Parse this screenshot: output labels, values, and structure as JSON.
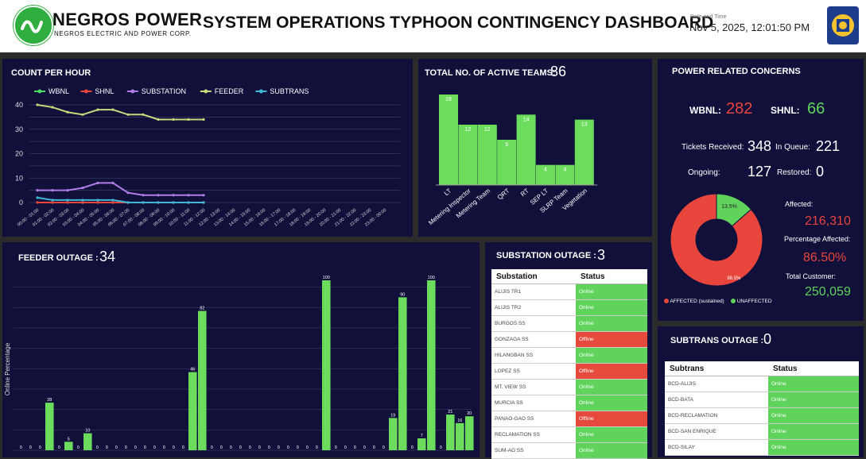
{
  "header": {
    "logo_text": "NEGROS POWER",
    "logo_subtext": "NEGROS ELECTRIC AND POWER CORP.",
    "title": "SYSTEM OPERATIONS TYPHOON CONTINGENCY DASHBOARD",
    "datetime_label": "Date and Time",
    "datetime_value": "Nov 5, 2025, 12:01:50 PM"
  },
  "count_per_hour": {
    "title": "COUNT PER HOUR",
    "legend": [
      "WBNL",
      "SHNL",
      "SUBSTATION",
      "FEEDER",
      "SUBTRANS"
    ],
    "colors": {
      "WBNL": "#4cd964",
      "SHNL": "#e8453c",
      "SUBSTATION": "#b07ce8",
      "FEEDER": "#c9d67a",
      "SUBTRANS": "#3fb8d6"
    }
  },
  "active_teams": {
    "title": "TOTAL NO. OF ACTIVE TEAMS:",
    "total": "86",
    "bar_color": "#6bdc5c"
  },
  "power_concerns": {
    "title": "POWER RELATED CONCERNS",
    "wbnl_label": "WBNL:",
    "wbnl_value": "282",
    "shnl_label": "SHNL:",
    "shnl_value": "66",
    "tickets_label": "Tickets Received:",
    "tickets_value": "348",
    "queue_label": "In Queue:",
    "queue_value": "221",
    "ongoing_label": "Ongoing:",
    "ongoing_value": "127",
    "restored_label": "Restored:",
    "restored_value": "0",
    "affected_label": "Affected:",
    "affected_value": "216,310",
    "pct_label": "Percentage Affected:",
    "pct_value": "86.50%",
    "total_label": "Total Customer:",
    "total_value": "250,059",
    "donut_affected_label": "86.5%",
    "donut_unaffected_label": "13.5%",
    "legend_affected": "AFFECTED (sustained)",
    "legend_unaffected": "UNAFFECTED",
    "affected_fraction": 0.865,
    "colors": {
      "affected": "#e8453c",
      "unaffected": "#5fd35b"
    }
  },
  "feeder_outage": {
    "title": "FEEDER OUTAGE :",
    "count": "34",
    "ylabel": "Online Percentage"
  },
  "substation_outage": {
    "title": "SUBSTATION OUTAGE :",
    "count": "3",
    "col_name": "Substation",
    "col_status": "Status",
    "rows": [
      {
        "name": "ALIJIS TR1",
        "status": "Online"
      },
      {
        "name": "ALIJIS TR2",
        "status": "Online"
      },
      {
        "name": "BURGOS SS",
        "status": "Online"
      },
      {
        "name": "GONZAGA SS",
        "status": "Offline"
      },
      {
        "name": "HILANGBAN SS",
        "status": "Online"
      },
      {
        "name": "LOPEZ SS",
        "status": "Offline"
      },
      {
        "name": "MT. VIEW SS",
        "status": "Online"
      },
      {
        "name": "MURCIA SS",
        "status": "Online"
      },
      {
        "name": "PANAO-GAO SS",
        "status": "Offline"
      },
      {
        "name": "RECLAMATION SS",
        "status": "Online"
      },
      {
        "name": "SUM-AG SS",
        "status": "Online"
      }
    ]
  },
  "subtrans_outage": {
    "title": "SUBTRANS OUTAGE :",
    "count": "0",
    "col_name": "Subtrans",
    "col_status": "Status",
    "rows": [
      {
        "name": "BCD-ALIJIS",
        "status": "Online"
      },
      {
        "name": "BCD-BATA",
        "status": "Online"
      },
      {
        "name": "BCD-RECLAMATION",
        "status": "Online"
      },
      {
        "name": "BCD-SAN ENRIQUE",
        "status": "Online"
      },
      {
        "name": "BCD-SILAY",
        "status": "Online"
      }
    ]
  },
  "chart_data": [
    {
      "type": "line",
      "title": "COUNT PER HOUR",
      "x": [
        "00:00 - 01:00",
        "01:00 - 02:00",
        "02:00 - 03:00",
        "03:00 - 04:00",
        "04:00 - 05:00",
        "05:00 - 06:00",
        "06:00 - 07:00",
        "07:00 - 08:00",
        "08:00 - 09:00",
        "09:00 - 10:00",
        "10:00 - 11:00",
        "11:00 - 12:00",
        "12:00 - 13:00",
        "13:00 - 14:00",
        "14:00 - 15:00",
        "15:00 - 16:00",
        "16:00 - 17:00",
        "17:00 - 18:00",
        "18:00 - 19:00",
        "19:00 - 20:00",
        "20:00 - 21:00",
        "21:00 - 22:00",
        "22:00 - 23:00",
        "23:00 - 00:00"
      ],
      "ylim": [
        0,
        40
      ],
      "yticks": [
        0,
        10,
        20,
        30,
        40
      ],
      "grid": true,
      "legend_position": "top-left",
      "series": [
        {
          "name": "WBNL",
          "values": [
            0,
            0,
            0,
            0,
            0,
            0,
            0,
            0,
            0,
            0,
            0,
            0,
            null,
            null,
            null,
            null,
            null,
            null,
            null,
            null,
            null,
            null,
            null,
            null
          ]
        },
        {
          "name": "SHNL",
          "values": [
            0,
            0,
            0,
            0,
            0,
            0,
            0,
            0,
            0,
            0,
            0,
            0,
            null,
            null,
            null,
            null,
            null,
            null,
            null,
            null,
            null,
            null,
            null,
            null
          ]
        },
        {
          "name": "SUBSTATION",
          "values": [
            5,
            5,
            5,
            6,
            8,
            8,
            4,
            3,
            3,
            3,
            3,
            3,
            null,
            null,
            null,
            null,
            null,
            null,
            null,
            null,
            null,
            null,
            null,
            null
          ]
        },
        {
          "name": "FEEDER",
          "values": [
            40,
            39,
            37,
            36,
            38,
            38,
            36,
            36,
            34,
            34,
            34,
            34,
            null,
            null,
            null,
            null,
            null,
            null,
            null,
            null,
            null,
            null,
            null,
            null
          ]
        },
        {
          "name": "SUBTRANS",
          "values": [
            2,
            1,
            1,
            1,
            1,
            1,
            0,
            0,
            0,
            0,
            0,
            0,
            null,
            null,
            null,
            null,
            null,
            null,
            null,
            null,
            null,
            null,
            null,
            null
          ]
        }
      ]
    },
    {
      "type": "bar",
      "title": "TOTAL NO. OF ACTIVE TEAMS:",
      "categories": [
        "LT",
        "Metering Inspector",
        "Metering Team",
        "QRT",
        "RT",
        "SEP LT",
        "SLRP Team",
        "Vegetation"
      ],
      "values": [
        18,
        12,
        12,
        9,
        14,
        4,
        4,
        13
      ]
    },
    {
      "type": "pie",
      "title": "POWER RELATED CONCERNS",
      "slices": [
        {
          "name": "AFFECTED (sustained)",
          "value": 86.5
        },
        {
          "name": "UNAFFECTED",
          "value": 13.5
        }
      ]
    },
    {
      "type": "bar",
      "title": "FEEDER OUTAGE :",
      "ylabel": "Online Percentage",
      "ylim": [
        0,
        100
      ],
      "values": [
        0,
        0,
        0,
        28,
        0,
        5,
        0,
        10,
        0,
        0,
        0,
        0,
        0,
        0,
        0,
        0,
        0,
        0,
        46,
        82,
        0,
        0,
        0,
        0,
        0,
        0,
        0,
        0,
        0,
        0,
        0,
        0,
        100,
        0,
        0,
        0,
        0,
        0,
        0,
        19,
        90,
        0,
        7,
        100,
        0,
        21,
        16,
        20
      ]
    }
  ]
}
